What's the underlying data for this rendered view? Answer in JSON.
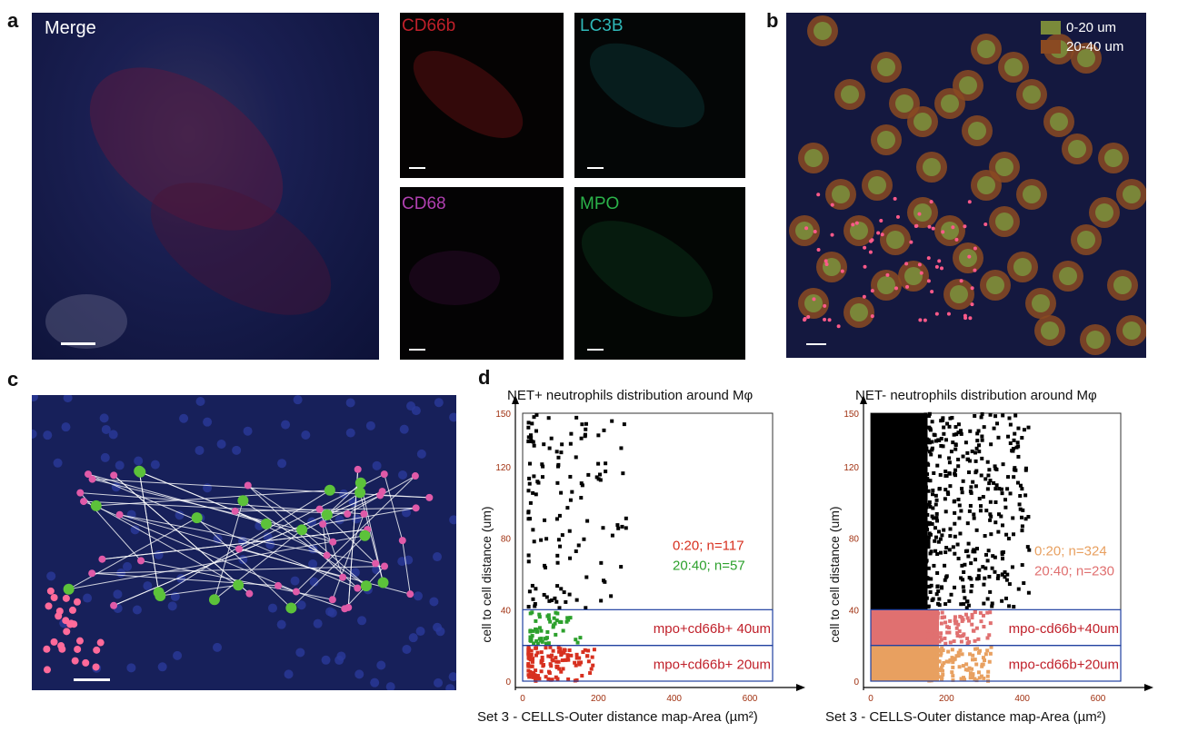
{
  "panels": {
    "a": {
      "label": "a",
      "merge_label": "Merge",
      "channels": [
        {
          "name": "CD66b",
          "color": "#c0202a"
        },
        {
          "name": "LC3B",
          "color": "#2fb8b8"
        },
        {
          "name": "CD68",
          "color": "#b040b0"
        },
        {
          "name": "MPO",
          "color": "#2bb24a"
        }
      ]
    },
    "b": {
      "label": "b",
      "legend": [
        {
          "label": "0-20 um",
          "color": "#7a8a3a"
        },
        {
          "label": "20-40 um",
          "color": "#8a4a22"
        }
      ]
    },
    "c": {
      "label": "c"
    },
    "d": {
      "label": "d"
    }
  },
  "chart_data": [
    {
      "type": "scatter",
      "title": "NET+ neutrophils distribution around Mφ",
      "xlabel": "Set 3 - CELLS-Outer distance map-Area (µm²)",
      "ylabel": "cell to cell distance (um)",
      "xlim": [
        0,
        660
      ],
      "ylim": [
        0,
        150
      ],
      "xticks": [
        "0",
        "200",
        "400",
        "600"
      ],
      "yticks": [
        "0",
        "40",
        "80",
        "120",
        "150"
      ],
      "annotations": [
        {
          "text": "0:20; n=117",
          "color": "#d7301f"
        },
        {
          "text": "20:40; n=57",
          "color": "#2ca02c"
        }
      ],
      "boxes": [
        {
          "label": "mpo+cd66b+ 40um",
          "range": [
            20,
            40
          ]
        },
        {
          "label": "mpo+cd66b+ 20um",
          "range": [
            0,
            20
          ]
        }
      ],
      "series": [
        {
          "range": "0-20",
          "color": "#d7301f",
          "count": 117
        },
        {
          "range": "20-40",
          "color": "#2ca02c",
          "count": 57
        },
        {
          "range": ">40",
          "color": "#000000"
        }
      ]
    },
    {
      "type": "scatter",
      "title": "NET- neutrophils distribution around Mφ",
      "xlabel": "Set 3 - CELLS-Outer distance map-Area (µm²)",
      "ylabel": "cell to cell distance (um)",
      "xlim": [
        0,
        660
      ],
      "ylim": [
        0,
        150
      ],
      "xticks": [
        "0",
        "200",
        "400",
        "600"
      ],
      "yticks": [
        "0",
        "40",
        "80",
        "120",
        "150"
      ],
      "annotations": [
        {
          "text": "0:20; n=324",
          "color": "#e8a060"
        },
        {
          "text": "20:40; n=230",
          "color": "#e07070"
        }
      ],
      "boxes": [
        {
          "label": "mpo-cd66b+40um",
          "range": [
            20,
            40
          ]
        },
        {
          "label": "mpo-cd66b+20um",
          "range": [
            0,
            20
          ]
        }
      ],
      "series": [
        {
          "range": "0-20",
          "color": "#e8a060",
          "count": 324
        },
        {
          "range": "20-40",
          "color": "#e07070",
          "count": 230
        },
        {
          "range": ">40",
          "color": "#000000"
        }
      ]
    }
  ]
}
